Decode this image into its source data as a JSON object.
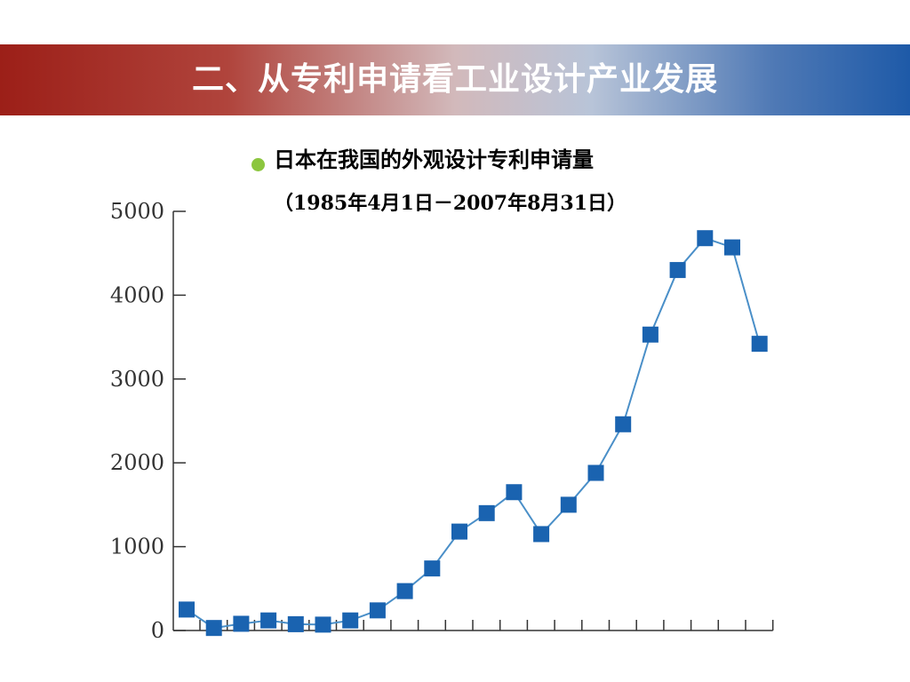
{
  "slide": {
    "title": "二、从专利申请看工业设计产业发展",
    "subtitle": "日本在我国的外观设计专利申请量",
    "date_range": "（1985年4月1日－2007年8月31日）"
  },
  "colors": {
    "banner_left": "#9c1f18",
    "banner_right": "#1e5aa8",
    "bullet": "#8cc63f",
    "series_line": "#4a8fc8",
    "series_marker": "#1a63b0",
    "axis": "#333333"
  },
  "chart_data": {
    "type": "line",
    "title": "",
    "xlabel": "",
    "ylabel": "",
    "ylim": [
      0,
      5000
    ],
    "yticks": [
      0,
      1000,
      2000,
      3000,
      4000,
      5000
    ],
    "x_tick_count": 22,
    "grid": false,
    "legend": "none",
    "series": [
      {
        "values": [
          250,
          30,
          80,
          120,
          75,
          70,
          120,
          240,
          470,
          740,
          1180,
          1400,
          1650,
          1150,
          1500,
          1880,
          2460,
          3530,
          4300,
          4680,
          4570,
          3420
        ]
      }
    ]
  }
}
